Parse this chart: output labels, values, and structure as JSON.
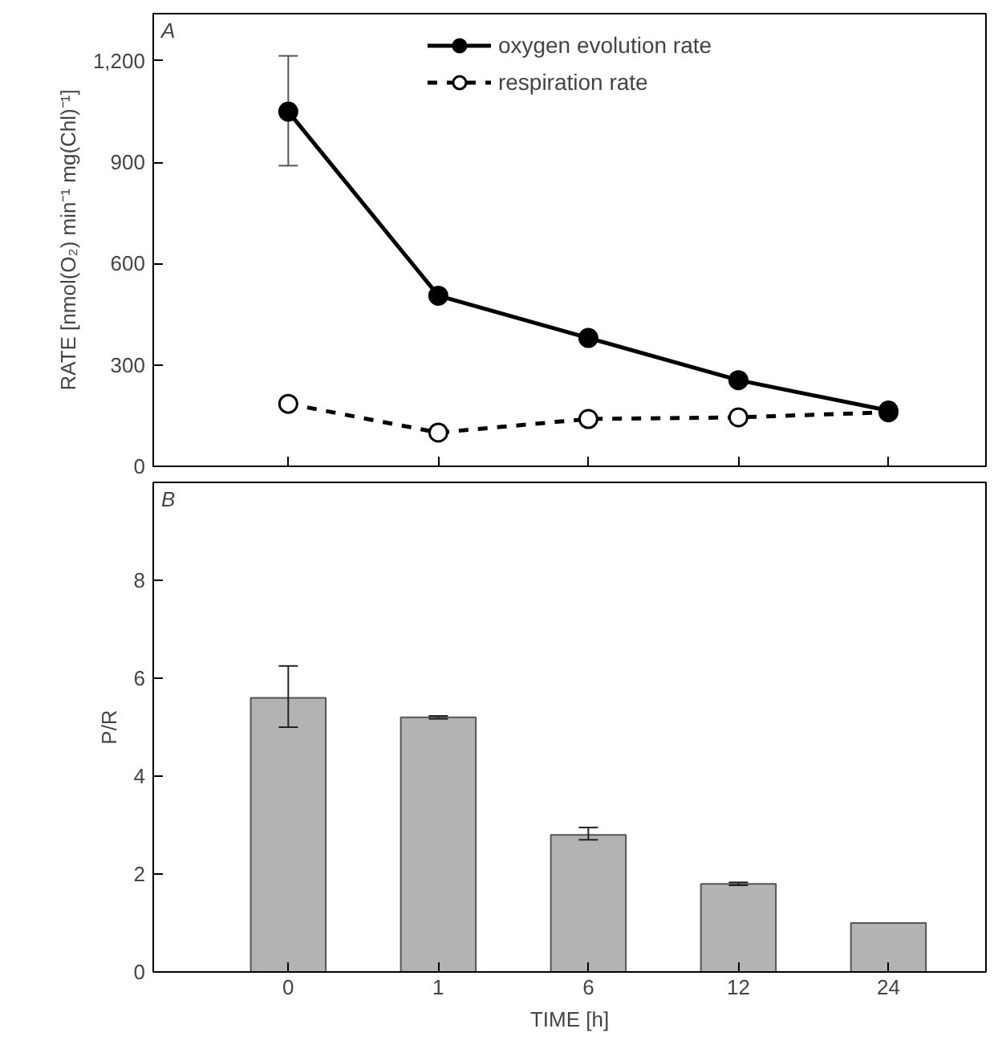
{
  "chart_data": [
    {
      "type": "line",
      "ylabel": "RATE [nmol(O₂) min⁻¹ mg(Chl)⁻¹]",
      "annotations": [
        "A"
      ],
      "categories": [
        "0",
        "1",
        "6",
        "12",
        "24"
      ],
      "ylim": [
        0,
        1340
      ],
      "yticks": [
        0,
        300,
        600,
        900,
        {
          "value": 1200,
          "label": "1,200"
        }
      ],
      "tick_labels": "y",
      "legend": "top",
      "marker": "circle",
      "grid": false,
      "series": [
        {
          "name": "oxygen evolution rate",
          "color": "#000000",
          "line_style": "solid",
          "values": [
            1050,
            505,
            380,
            255,
            165
          ],
          "errors": [
            [
              890,
              1215
            ],
            null,
            null,
            null,
            null
          ]
        },
        {
          "name": "respiration rate",
          "color": "#000000",
          "line_style": "dashed",
          "values": [
            185,
            100,
            140,
            145,
            160
          ]
        }
      ]
    },
    {
      "type": "bar",
      "xlabel": "TIME [h]",
      "ylabel": "P/R",
      "annotations": [
        "B"
      ],
      "categories": [
        "0",
        "1",
        "6",
        "12",
        "24"
      ],
      "ylim": [
        0,
        10
      ],
      "yticks": [
        0,
        2,
        4,
        6,
        8
      ],
      "grid": false,
      "color": "#b3b3b3",
      "values": [
        5.6,
        5.2,
        2.8,
        1.8,
        1.0
      ],
      "errors": [
        [
          5.0,
          6.25
        ],
        0.03,
        [
          2.7,
          2.95
        ],
        0.03,
        null
      ]
    }
  ]
}
